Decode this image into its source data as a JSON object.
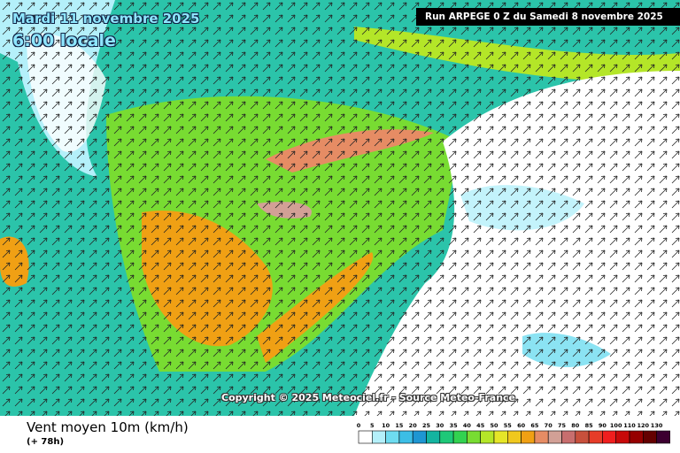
{
  "header": {
    "date": "Mardi 11 novembre 2025",
    "time": "6:00 locale",
    "run": "Run ARPEGE 0 Z du Samedi 8 novembre 2025"
  },
  "footer": {
    "copyright": "Copyright © 2025 Meteociel.fr - Source Meteo-France",
    "title": "Vent moyen 10m (km/h)",
    "step": "(+ 78h)"
  },
  "legend": {
    "labels": [
      0,
      5,
      10,
      15,
      20,
      25,
      30,
      35,
      40,
      45,
      50,
      55,
      60,
      65,
      70,
      75,
      80,
      85,
      90,
      100,
      110,
      120,
      130
    ],
    "colors": [
      "#ffffff",
      "#b4f0fa",
      "#6edcf0",
      "#3cbee6",
      "#1e96d2",
      "#14b4a0",
      "#1ec878",
      "#32d250",
      "#78dc32",
      "#b4e628",
      "#e6e628",
      "#f0c81e",
      "#f0a014",
      "#e68c64",
      "#d2a096",
      "#c86e6e",
      "#c8503c",
      "#e63c28",
      "#f01e1e",
      "#c80a0a",
      "#960000",
      "#640000",
      "#3c0030"
    ]
  }
}
